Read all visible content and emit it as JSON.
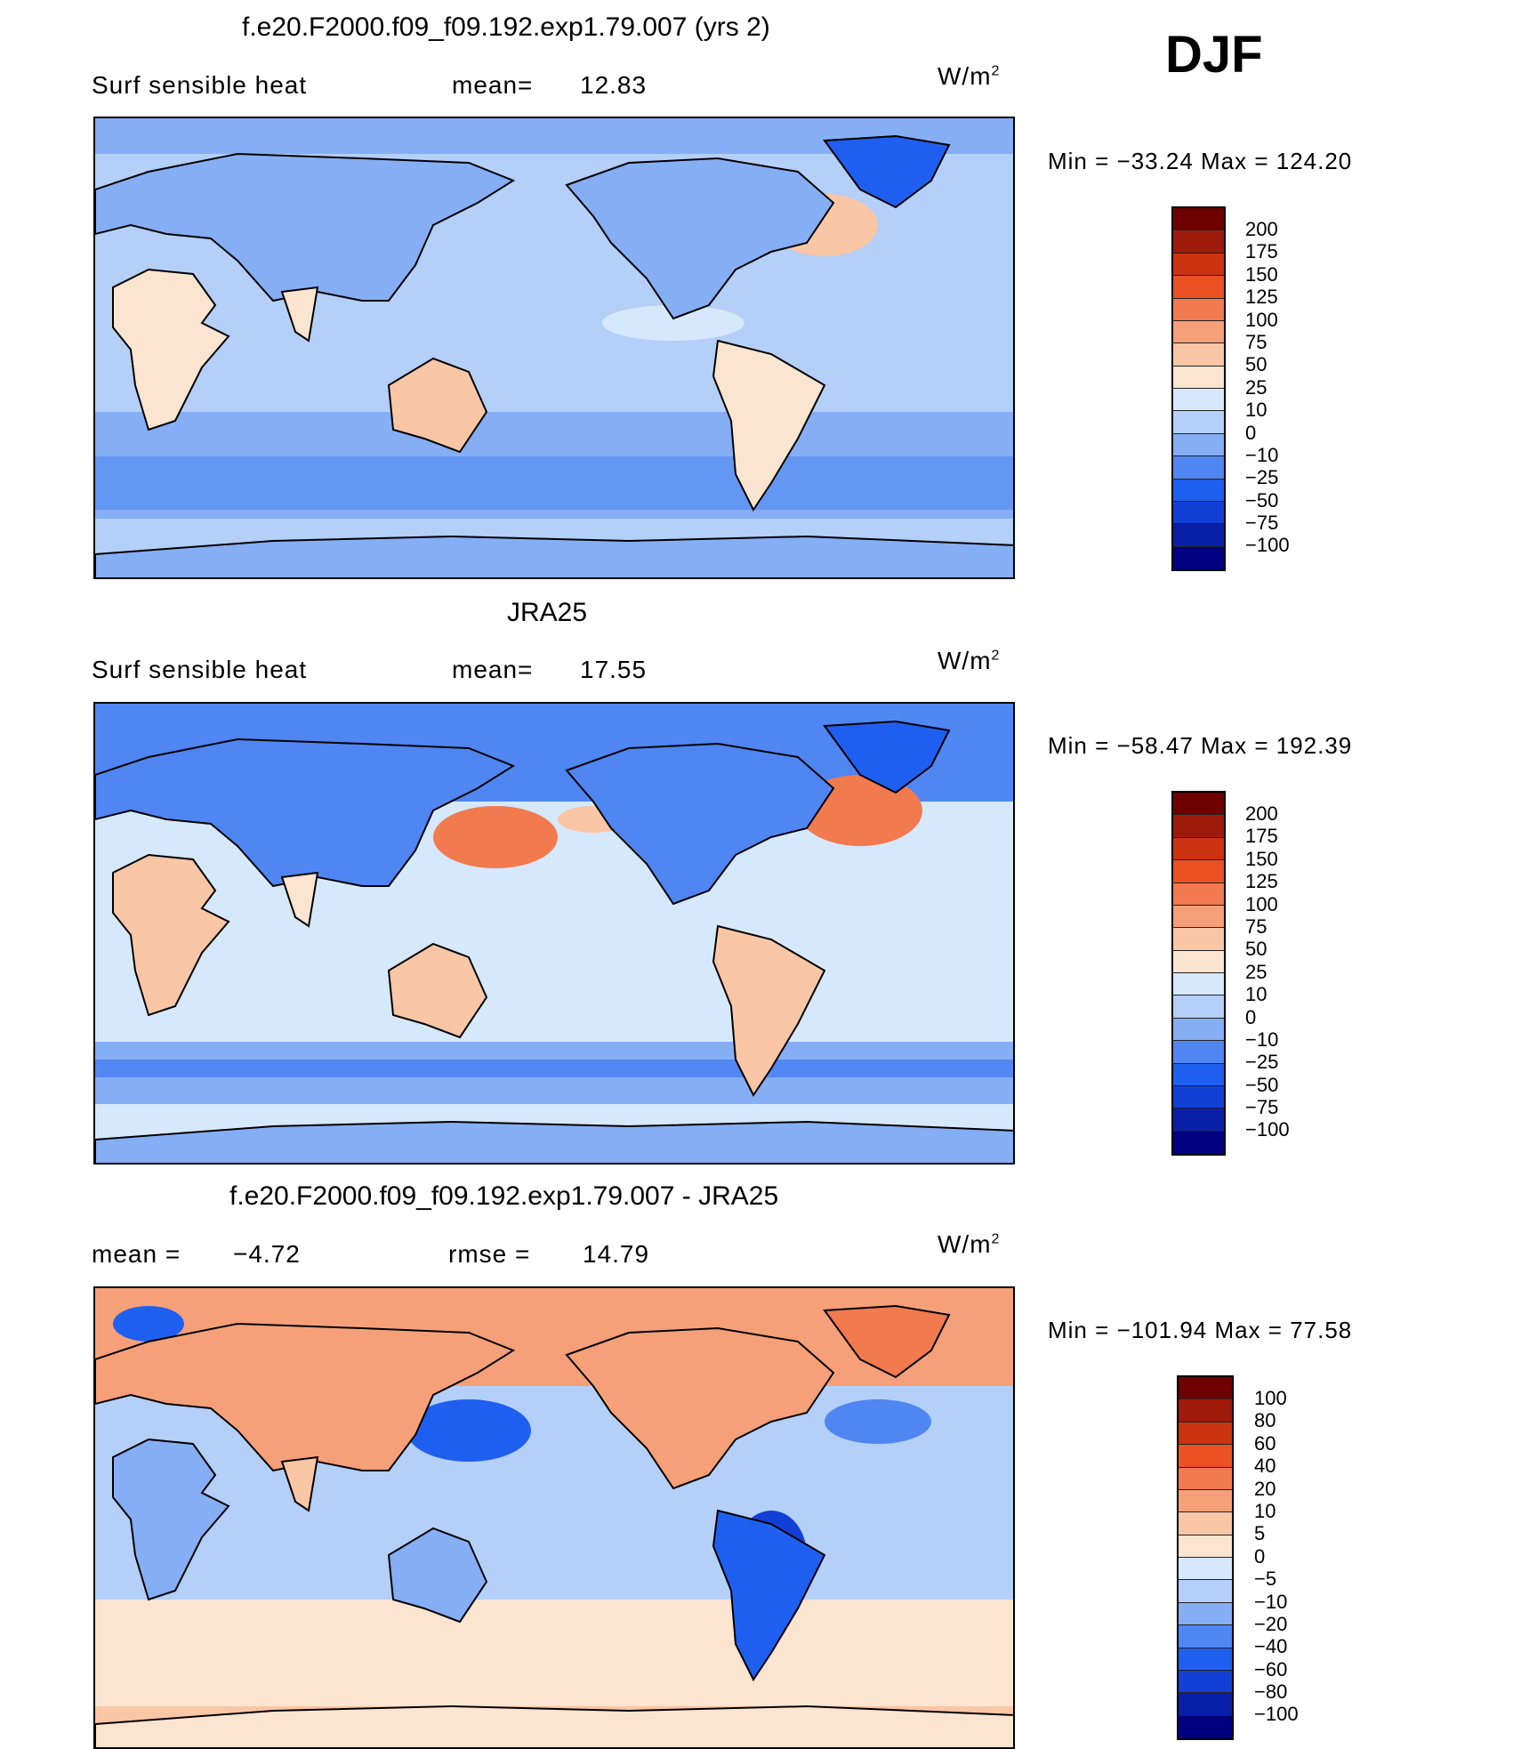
{
  "season": "DJF",
  "panels": [
    {
      "title": "f.e20.F2000.f09_f09.192.exp1.79.007 (yrs 2)",
      "left_label": "Surf  sensible  heat",
      "stat_label": "mean=",
      "stat_value": "12.83",
      "unit": "W/m",
      "unit_sup": "2",
      "minmax": "Min  =  −33.24  Max  =  124.20",
      "colorbar_levels": [
        "200",
        "175",
        "150",
        "125",
        "100",
        "75",
        "50",
        "25",
        "10",
        "0",
        "−10",
        "−25",
        "−50",
        "−75",
        "−100"
      ]
    },
    {
      "title": "JRA25",
      "left_label": "Surf  sensible  heat",
      "stat_label": "mean=",
      "stat_value": "17.55",
      "unit": "W/m",
      "unit_sup": "2",
      "minmax": "Min  =  −58.47  Max  =  192.39",
      "colorbar_levels": [
        "200",
        "175",
        "150",
        "125",
        "100",
        "75",
        "50",
        "25",
        "10",
        "0",
        "−10",
        "−25",
        "−50",
        "−75",
        "−100"
      ]
    },
    {
      "title": "f.e20.F2000.f09_f09.192.exp1.79.007 - JRA25",
      "left_label": "mean  =",
      "left_value": "−4.72",
      "stat_label": "rmse  =",
      "stat_value": "14.79",
      "unit": "W/m",
      "unit_sup": "2",
      "minmax": "Min  =  −101.94  Max  =    77.58",
      "colorbar_levels": [
        "100",
        "80",
        "60",
        "40",
        "20",
        "10",
        "5",
        "0",
        "−5",
        "−10",
        "−20",
        "−40",
        "−60",
        "−80",
        "−100"
      ]
    }
  ],
  "chart_data": [
    {
      "type": "heatmap",
      "title": "f.e20.F2000.f09_f09.192.exp1.79.007 (yrs 2)",
      "variable": "Surf sensible heat",
      "units": "W/m2",
      "mean": 12.83,
      "min": -33.24,
      "max": 124.2,
      "levels": [
        -100,
        -75,
        -50,
        -25,
        -10,
        0,
        10,
        25,
        50,
        75,
        100,
        125,
        150,
        175,
        200
      ],
      "colors": [
        "#000080",
        "#0a1fa8",
        "#1240d6",
        "#1f5ff0",
        "#4f86f2",
        "#86aef5",
        "#b4cff8",
        "#d6e8fb",
        "#fbe4d0",
        "#f9c6a6",
        "#f6a07a",
        "#f27a4f",
        "#ea5224",
        "#cc3310",
        "#9e1a0a",
        "#6e0000"
      ]
    },
    {
      "type": "heatmap",
      "title": "JRA25",
      "variable": "Surf sensible heat",
      "units": "W/m2",
      "mean": 17.55,
      "min": -58.47,
      "max": 192.39,
      "levels": [
        -100,
        -75,
        -50,
        -25,
        -10,
        0,
        10,
        25,
        50,
        75,
        100,
        125,
        150,
        175,
        200
      ],
      "colors": [
        "#000080",
        "#0a1fa8",
        "#1240d6",
        "#1f5ff0",
        "#4f86f2",
        "#86aef5",
        "#b4cff8",
        "#d6e8fb",
        "#fbe4d0",
        "#f9c6a6",
        "#f6a07a",
        "#f27a4f",
        "#ea5224",
        "#cc3310",
        "#9e1a0a",
        "#6e0000"
      ]
    },
    {
      "type": "heatmap",
      "title": "f.e20.F2000.f09_f09.192.exp1.79.007 - JRA25",
      "units": "W/m2",
      "mean": -4.72,
      "rmse": 14.79,
      "min": -101.94,
      "max": 77.58,
      "levels": [
        -100,
        -80,
        -60,
        -40,
        -20,
        -10,
        -5,
        0,
        5,
        10,
        20,
        40,
        60,
        80,
        100
      ],
      "colors": [
        "#000080",
        "#0a1fa8",
        "#1240d6",
        "#1f5ff0",
        "#4f86f2",
        "#86aef5",
        "#b4cff8",
        "#d6e8fb",
        "#fbe4d0",
        "#f9c6a6",
        "#f6a07a",
        "#f27a4f",
        "#ea5224",
        "#cc3310",
        "#9e1a0a",
        "#6e0000"
      ]
    }
  ]
}
